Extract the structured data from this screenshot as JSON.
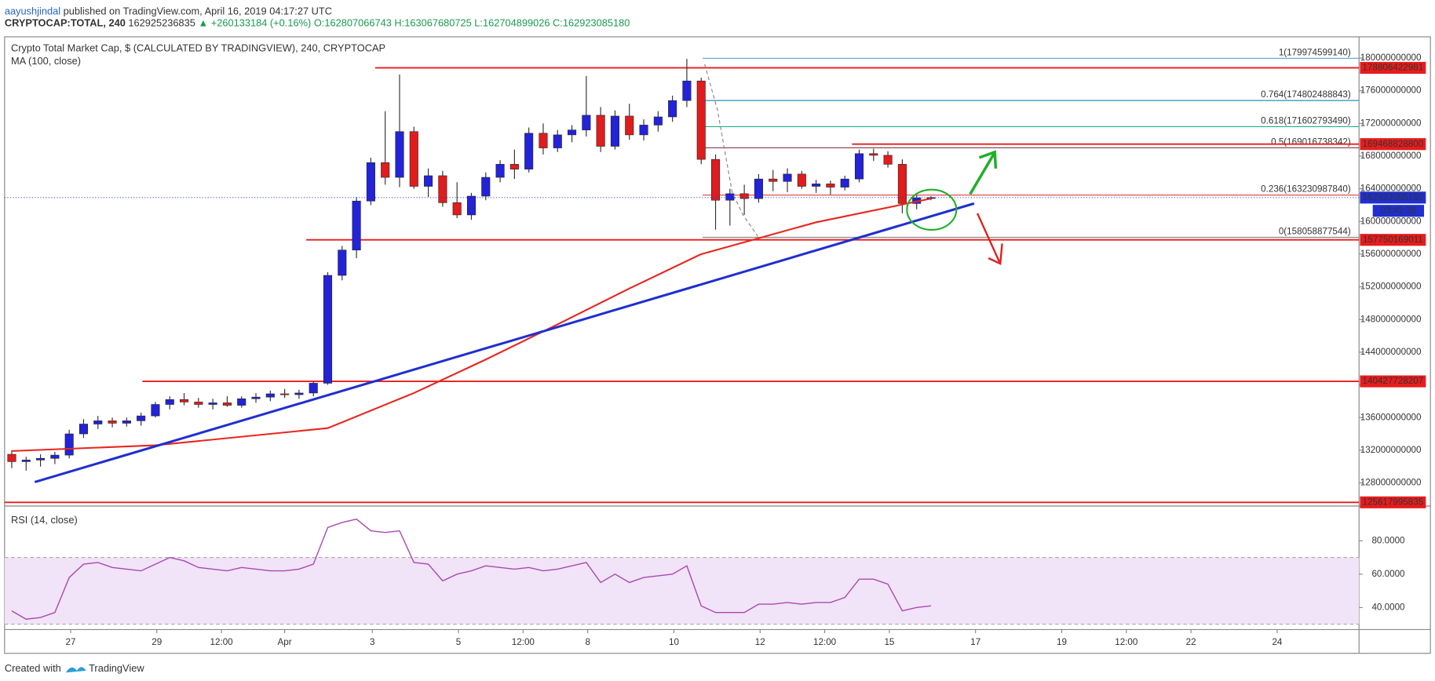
{
  "header": {
    "author": "aayushjindal",
    "published": "published on TradingView.com, April 16, 2019 04:17:27 UTC",
    "symbol": "CRYPTOCAP:TOTAL, 240",
    "last": "162925236835",
    "change": "▲ +260133184 (+0.16%)",
    "ohlc": "O:162807066743 H:163067680725 L:162704899026 C:162923085180"
  },
  "footer": {
    "created": "Created with",
    "brand": "TradingView"
  },
  "chart_data": [
    {
      "type": "candlestick",
      "title": "Crypto Total Market Cap, $ (CALCULATED BY TRADINGVIEW), 240, CRYPTOCAP",
      "up_color": "#2323d8",
      "down_color": "#e01c1c",
      "x": [
        0,
        1,
        2,
        3,
        4,
        5,
        6,
        7,
        8,
        9,
        10,
        11,
        12,
        13,
        14,
        15,
        16,
        17,
        18,
        19,
        20,
        21,
        22,
        23,
        24,
        25,
        26,
        27,
        28,
        29,
        30,
        31,
        32,
        33,
        34,
        35,
        36,
        37,
        38,
        39,
        40,
        41,
        42,
        43,
        44,
        45,
        46,
        47,
        48,
        49,
        50,
        51,
        52,
        53,
        54,
        55,
        56,
        57,
        58,
        59,
        60,
        61,
        62,
        63,
        64
      ],
      "open": [
        131500000000.0,
        130600000000.0,
        130800000000.0,
        131000000000.0,
        131400000000.0,
        134000000000.0,
        135200000000.0,
        135600000000.0,
        135300000000.0,
        135600000000.0,
        136200000000.0,
        137600000000.0,
        138200000000.0,
        137900000000.0,
        137600000000.0,
        137800000000.0,
        137500000000.0,
        138300000000.0,
        138500000000.0,
        138900000000.0,
        138800000000.0,
        139000000000.0,
        140200000000.0,
        153400000000.0,
        156500000000.0,
        162500000000.0,
        167200000000.0,
        165400000000.0,
        171000000000.0,
        164300000000.0,
        165600000000.0,
        162300000000.0,
        160800000000.0,
        163100000000.0,
        165400000000.0,
        167000000000.0,
        166400000000.0,
        170800000000.0,
        169000000000.0,
        170600000000.0,
        171200000000.0,
        173000000000.0,
        169200000000.0,
        172900000000.0,
        170600000000.0,
        171800000000.0,
        172800000000.0,
        174800000000.0,
        177200000000.0,
        167600000000.0,
        162600000000.0,
        163400000000.0,
        162800000000.0,
        165200000000.0,
        164900000000.0,
        165800000000.0,
        164300000000.0,
        164600000000.0,
        164200000000.0,
        165200000000.0,
        168300000000.0,
        168100000000.0,
        167000000000.0,
        162200000000.0,
        162900000000.0
      ],
      "high": [
        132000000000.0,
        131200000000.0,
        131500000000.0,
        131800000000.0,
        134500000000.0,
        135800000000.0,
        136200000000.0,
        136000000000.0,
        136000000000.0,
        136600000000.0,
        137900000000.0,
        138600000000.0,
        139000000000.0,
        138400000000.0,
        138300000000.0,
        138600000000.0,
        138600000000.0,
        139000000000.0,
        139300000000.0,
        139500000000.0,
        139400000000.0,
        140400000000.0,
        153800000000.0,
        157000000000.0,
        163000000000.0,
        167800000000.0,
        173500000000.0,
        178000000000.0,
        171600000000.0,
        166500000000.0,
        166200000000.0,
        164800000000.0,
        163500000000.0,
        166000000000.0,
        167500000000.0,
        168800000000.0,
        171500000000.0,
        172000000000.0,
        171200000000.0,
        171800000000.0,
        177800000000.0,
        174000000000.0,
        173600000000.0,
        174400000000.0,
        172500000000.0,
        173500000000.0,
        175400000000.0,
        179900000000.0,
        177600000000.0,
        168200000000.0,
        164000000000.0,
        164500000000.0,
        165800000000.0,
        166300000000.0,
        166500000000.0,
        166200000000.0,
        165100000000.0,
        165000000000.0,
        165600000000.0,
        168800000000.0,
        168900000000.0,
        168600000000.0,
        167600000000.0,
        163200000000.0,
        163100000000.0
      ],
      "low": [
        129800000000.0,
        129500000000.0,
        130000000000.0,
        130300000000.0,
        131000000000.0,
        133500000000.0,
        134600000000.0,
        134800000000.0,
        134900000000.0,
        135000000000.0,
        136000000000.0,
        137000000000.0,
        137500000000.0,
        137200000000.0,
        137000000000.0,
        137300000000.0,
        137200000000.0,
        137800000000.0,
        138000000000.0,
        138400000000.0,
        138300000000.0,
        138600000000.0,
        140000000000.0,
        152800000000.0,
        155500000000.0,
        162000000000.0,
        164500000000.0,
        164200000000.0,
        164000000000.0,
        163000000000.0,
        161800000000.0,
        160400000000.0,
        160200000000.0,
        162600000000.0,
        164800000000.0,
        165200000000.0,
        166000000000.0,
        168200000000.0,
        168500000000.0,
        169700000000.0,
        170400000000.0,
        168500000000.0,
        168800000000.0,
        170000000000.0,
        169900000000.0,
        171000000000.0,
        172200000000.0,
        174000000000.0,
        167000000000.0,
        159000000000.0,
        159500000000.0,
        160800000000.0,
        162300000000.0,
        163700000000.0,
        163600000000.0,
        164000000000.0,
        163500000000.0,
        163300000000.0,
        163800000000.0,
        164800000000.0,
        167400000000.0,
        166600000000.0,
        161000000000.0,
        161500000000.0,
        162600000000.0
      ],
      "close": [
        130600000000.0,
        130800000000.0,
        131000000000.0,
        131400000000.0,
        134000000000.0,
        135200000000.0,
        135600000000.0,
        135300000000.0,
        135600000000.0,
        136200000000.0,
        137600000000.0,
        138200000000.0,
        137900000000.0,
        137600000000.0,
        137800000000.0,
        137500000000.0,
        138300000000.0,
        138500000000.0,
        138900000000.0,
        138800000000.0,
        139000000000.0,
        140200000000.0,
        153400000000.0,
        156500000000.0,
        162500000000.0,
        167200000000.0,
        165400000000.0,
        171000000000.0,
        164300000000.0,
        165600000000.0,
        162300000000.0,
        160800000000.0,
        163100000000.0,
        165400000000.0,
        167000000000.0,
        166400000000.0,
        170800000000.0,
        169000000000.0,
        170600000000.0,
        171200000000.0,
        173000000000.0,
        169200000000.0,
        172900000000.0,
        170600000000.0,
        171800000000.0,
        172800000000.0,
        174800000000.0,
        177200000000.0,
        167600000000.0,
        162600000000.0,
        163400000000.0,
        162800000000.0,
        165200000000.0,
        164900000000.0,
        165800000000.0,
        164300000000.0,
        164600000000.0,
        164200000000.0,
        165200000000.0,
        168300000000.0,
        168100000000.0,
        167000000000.0,
        162200000000.0,
        162900000000.0,
        162923085180
      ],
      "ma": {
        "name": "MA (100, close)",
        "color": "#e8261e",
        "x": [
          0,
          10,
          22,
          28,
          33,
          38,
          43,
          48,
          56,
          64
        ],
        "values": [
          131900000000.0,
          132600000000.0,
          134700000000.0,
          139000000000.0,
          143100000000.0,
          147400000000.0,
          151800000000.0,
          156000000000.0,
          159900000000.0,
          162800000000.0
        ]
      },
      "trendline": {
        "color": "#1f2fd0",
        "x": [
          1.6,
          67.0
        ],
        "values": [
          128100000000.0,
          162200000000.0
        ]
      },
      "levels": [
        {
          "x": 25.3,
          "value": 178806422981
        },
        {
          "x": 58.5,
          "value": 169468828800
        },
        {
          "x": 20.5,
          "value": 157750169011
        },
        {
          "x": 9.1,
          "value": 140427728207
        },
        {
          "x": -0.5,
          "value": 125617995835
        }
      ],
      "level_color": "#e81c1c",
      "fib_start": 48.1,
      "fib_levels": [
        {
          "value": 179974599140,
          "label": "1(179974599140)",
          "color": "#5aa2d8"
        },
        {
          "value": 174802488843,
          "label": "0.764(174802488843)",
          "color": "#2a8fb0"
        },
        {
          "value": 171602793490,
          "label": "0.618(171602793490)",
          "color": "#1fae8f"
        },
        {
          "value": 169016738342,
          "label": "0.5(169016738342)",
          "color": "#8a4a5a"
        },
        {
          "value": 163230987840,
          "label": "0.236(163230987840)",
          "color": "#e05050"
        },
        {
          "value": 158058877544,
          "label": "0(158058877544)",
          "color": "#8a8a8a"
        }
      ],
      "last_price": 162923085180,
      "last_color": "#1f2fd0",
      "countdown": "03:42:38",
      "xlim": [
        -0.5,
        93.8
      ],
      "ylim": [
        125500000000.0,
        182600000000.0
      ],
      "yticks": [
        128000000000.0,
        132000000000.0,
        136000000000.0,
        140000000000.0,
        144000000000.0,
        148000000000.0,
        152000000000.0,
        156000000000.0,
        160000000000.0,
        164000000000.0,
        168000000000.0,
        172000000000.0,
        176000000000.0,
        180000000000.0
      ],
      "xticks": [
        {
          "value": 4.1,
          "label": "27"
        },
        {
          "value": 10.1,
          "label": "29"
        },
        {
          "value": 14.6,
          "label": "12:00"
        },
        {
          "value": 19.0,
          "label": "Apr"
        },
        {
          "value": 25.1,
          "label": "3"
        },
        {
          "value": 31.1,
          "label": "5"
        },
        {
          "value": 35.6,
          "label": "12:00"
        },
        {
          "value": 40.1,
          "label": "8"
        },
        {
          "value": 46.1,
          "label": "10"
        },
        {
          "value": 52.1,
          "label": "12"
        },
        {
          "value": 56.6,
          "label": "12:00"
        },
        {
          "value": 61.1,
          "label": "15"
        },
        {
          "value": 67.1,
          "label": "17"
        },
        {
          "value": 73.1,
          "label": "19"
        },
        {
          "value": 77.6,
          "label": "12:00"
        },
        {
          "value": 82.1,
          "label": "22"
        },
        {
          "value": 88.1,
          "label": "24"
        }
      ]
    },
    {
      "type": "line",
      "title": "RSI (14, close)",
      "color": "#a94ab0",
      "band": [
        30,
        70
      ],
      "band_color": "#f1e3f8",
      "x": [
        0,
        1,
        2,
        3,
        4,
        5,
        6,
        7,
        8,
        9,
        10,
        11,
        12,
        13,
        14,
        15,
        16,
        17,
        18,
        19,
        20,
        21,
        22,
        23,
        24,
        25,
        26,
        27,
        28,
        29,
        30,
        31,
        32,
        33,
        34,
        35,
        36,
        37,
        38,
        39,
        40,
        41,
        42,
        43,
        44,
        45,
        46,
        47,
        48,
        49,
        50,
        51,
        52,
        53,
        54,
        55,
        56,
        57,
        58,
        59,
        60,
        61,
        62,
        63,
        64
      ],
      "values": [
        38,
        33,
        34,
        37,
        58,
        66,
        67,
        64,
        63,
        62,
        66,
        70,
        68,
        64,
        63,
        62,
        64,
        63,
        62,
        62,
        63,
        66,
        88,
        91,
        93,
        86,
        85,
        86,
        67,
        66,
        56,
        60,
        62,
        65,
        64,
        63,
        64,
        62,
        63,
        65,
        67,
        55,
        60,
        55,
        58,
        59,
        60,
        65,
        41,
        37,
        37,
        37,
        42,
        42,
        43,
        42,
        43,
        43,
        46,
        57,
        57,
        54,
        38,
        40,
        41
      ],
      "xlim": [
        -0.5,
        93.8
      ],
      "ylim": [
        26.8,
        99.2
      ],
      "yticks": [
        {
          "value": 40,
          "label": "40.0000"
        },
        {
          "value": 60,
          "label": "60.0000"
        },
        {
          "value": 80,
          "label": "80.0000"
        }
      ]
    }
  ]
}
